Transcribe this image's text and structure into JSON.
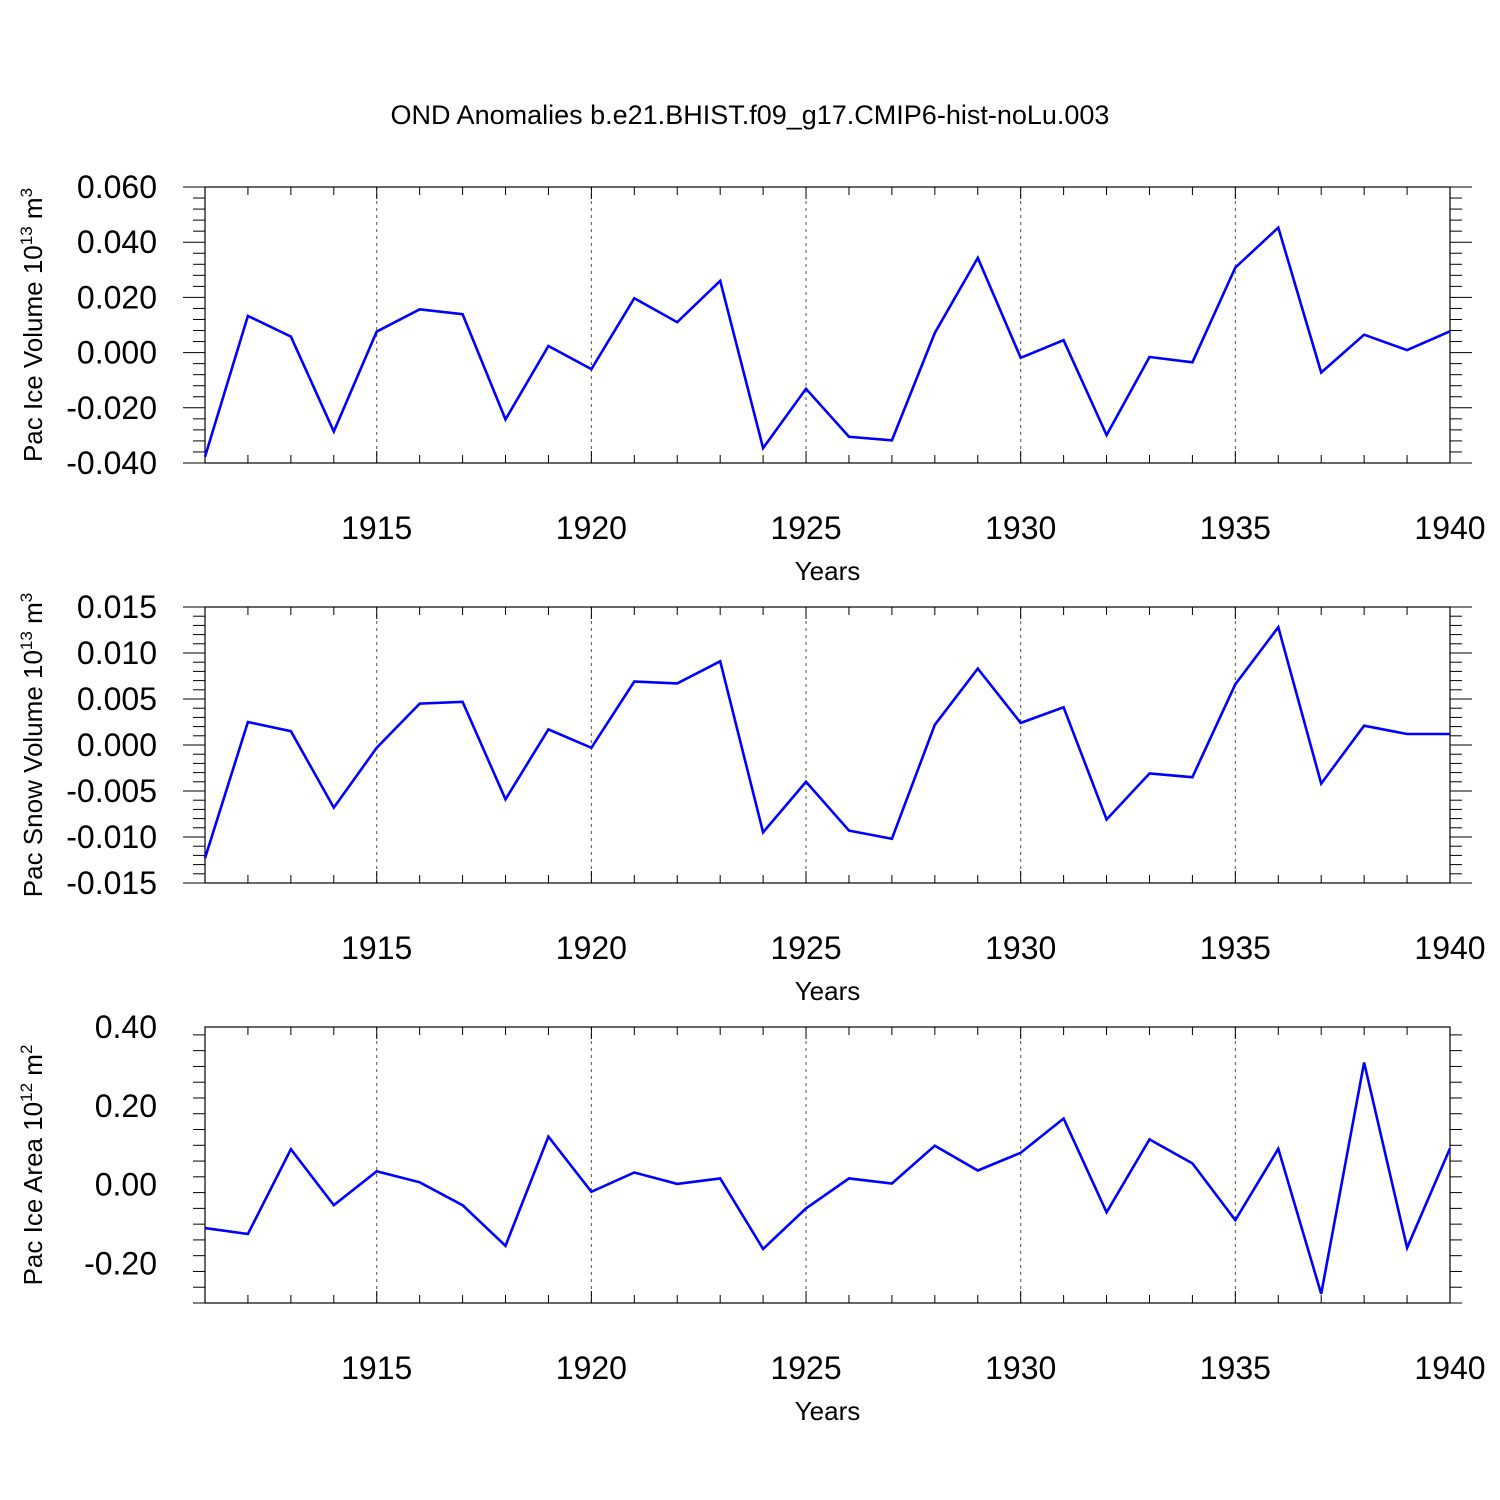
{
  "figure": {
    "title": "OND Anomalies b.e21.BHIST.f09_g17.CMIP6-hist-noLu.003"
  },
  "colors": {
    "series_line": "#0000ff",
    "axis": "#000000",
    "grid": "#555555",
    "background": "#ffffff"
  },
  "chart_data": [
    {
      "type": "line",
      "panel": "ice-volume",
      "ylabel": {
        "text": "Pac Ice Volume 10",
        "sup1": "13",
        "unit": " m",
        "sup2": "3"
      },
      "xlabel": "Years",
      "xlim": [
        1911,
        1940
      ],
      "ylim": [
        -0.04,
        0.06
      ],
      "yticks": [
        -0.04,
        -0.02,
        0.0,
        0.02,
        0.04,
        0.06
      ],
      "ytick_labels": [
        "-0.040",
        "-0.020",
        "0.000",
        "0.020",
        "0.040",
        "0.060"
      ],
      "xticks": [
        1915,
        1920,
        1925,
        1930,
        1935,
        1940
      ],
      "xtick_labels": [
        "1915",
        "1920",
        "1925",
        "1930",
        "1935",
        "1940"
      ],
      "grid": "vertical-dashed",
      "x": [
        1911,
        1912,
        1913,
        1914,
        1915,
        1916,
        1917,
        1918,
        1919,
        1920,
        1921,
        1922,
        1923,
        1924,
        1925,
        1926,
        1927,
        1928,
        1929,
        1930,
        1931,
        1932,
        1933,
        1934,
        1935,
        1936,
        1937,
        1938,
        1939,
        1940
      ],
      "values": [
        -0.0377,
        0.0133,
        0.0058,
        -0.0286,
        0.0076,
        0.0157,
        0.0139,
        -0.0242,
        0.0024,
        -0.006,
        0.0197,
        0.011,
        0.026,
        -0.0346,
        -0.0131,
        -0.0305,
        -0.0318,
        0.0071,
        0.0343,
        -0.0019,
        0.0045,
        -0.0299,
        -0.0016,
        -0.0035,
        0.0308,
        0.0453,
        -0.0072,
        0.0065,
        0.0009,
        0.0077
      ]
    },
    {
      "type": "line",
      "panel": "snow-volume",
      "ylabel": {
        "text": "Pac Snow Volume 10",
        "sup1": "13",
        "unit": " m",
        "sup2": "3"
      },
      "xlabel": "Years",
      "xlim": [
        1911,
        1940
      ],
      "ylim": [
        -0.015,
        0.015
      ],
      "yticks": [
        -0.015,
        -0.01,
        -0.005,
        0.0,
        0.005,
        0.01,
        0.015
      ],
      "ytick_labels": [
        "-0.015",
        "-0.010",
        "-0.005",
        "0.000",
        "0.005",
        "0.010",
        "0.015"
      ],
      "xticks": [
        1915,
        1920,
        1925,
        1930,
        1935,
        1940
      ],
      "xtick_labels": [
        "1915",
        "1920",
        "1925",
        "1930",
        "1935",
        "1940"
      ],
      "grid": "vertical-dashed",
      "x": [
        1911,
        1912,
        1913,
        1914,
        1915,
        1916,
        1917,
        1918,
        1919,
        1920,
        1921,
        1922,
        1923,
        1924,
        1925,
        1926,
        1927,
        1928,
        1929,
        1930,
        1931,
        1932,
        1933,
        1934,
        1935,
        1936,
        1937,
        1938,
        1939,
        1940
      ],
      "values": [
        -0.0123,
        0.0025,
        0.0015,
        -0.0068,
        -0.0003,
        0.0045,
        0.0047,
        -0.0059,
        0.0017,
        -0.0003,
        0.0069,
        0.0067,
        0.0091,
        -0.0095,
        -0.004,
        -0.0093,
        -0.0102,
        0.0022,
        0.0083,
        0.0024,
        0.0041,
        -0.0081,
        -0.0031,
        -0.0035,
        0.0066,
        0.0128,
        -0.0042,
        0.0021,
        0.0012,
        0.0012
      ]
    },
    {
      "type": "line",
      "panel": "ice-area",
      "ylabel": {
        "text": "Pac Ice Area 10",
        "sup1": "12",
        "unit": " m",
        "sup2": "2"
      },
      "xlabel": "Years",
      "xlim": [
        1911,
        1940
      ],
      "ylim": [
        -0.3,
        0.4
      ],
      "yticks": [
        -0.2,
        0.0,
        0.2,
        0.4
      ],
      "ytick_labels": [
        "-0.20",
        "0.00",
        "0.20",
        "0.40"
      ],
      "xticks": [
        1915,
        1920,
        1925,
        1930,
        1935,
        1940
      ],
      "xtick_labels": [
        "1915",
        "1920",
        "1925",
        "1930",
        "1935",
        "1940"
      ],
      "grid": "vertical-dashed",
      "x": [
        1911,
        1912,
        1913,
        1914,
        1915,
        1916,
        1917,
        1918,
        1919,
        1920,
        1921,
        1922,
        1923,
        1924,
        1925,
        1926,
        1927,
        1928,
        1929,
        1930,
        1931,
        1932,
        1933,
        1934,
        1935,
        1936,
        1937,
        1938,
        1939,
        1940
      ],
      "values": [
        -0.11,
        -0.125,
        0.09,
        -0.052,
        0.034,
        0.006,
        -0.052,
        -0.155,
        0.122,
        -0.018,
        0.031,
        0.002,
        0.016,
        -0.163,
        -0.06,
        0.016,
        0.003,
        0.099,
        0.036,
        0.081,
        0.168,
        -0.07,
        0.115,
        0.054,
        -0.09,
        0.091,
        -0.277,
        0.31,
        -0.16,
        0.092
      ]
    }
  ]
}
